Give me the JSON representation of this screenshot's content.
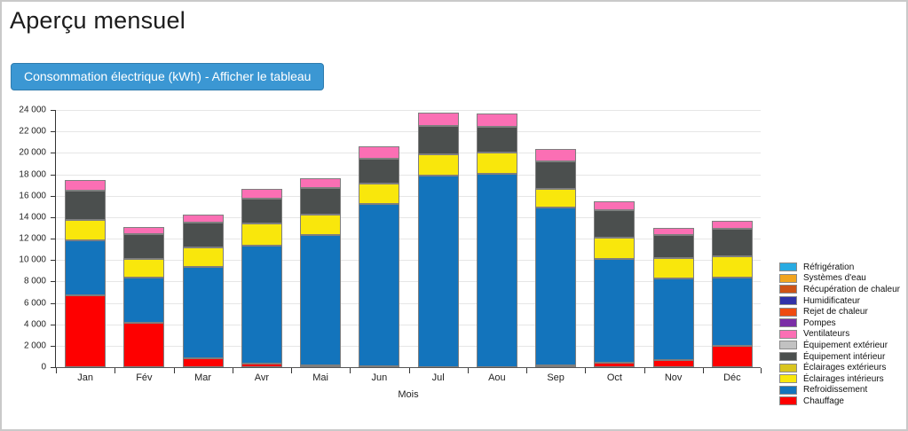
{
  "page": {
    "title": "Aperçu mensuel"
  },
  "toolbar": {
    "table_button_label": "Consommation électrique (kWh) - Afficher le tableau",
    "button_color": "#3b97d3"
  },
  "chart_data": {
    "type": "bar",
    "stacked": true,
    "xlabel": "Mois",
    "ylabel": "Consommation électrique (kWh)",
    "ylim": [
      0,
      24000
    ],
    "ytick_step": 2000,
    "grid": "horizontal",
    "legend_position": "right",
    "categories": [
      "Jan",
      "Fév",
      "Mar",
      "Avr",
      "Mai",
      "Jun",
      "Jul",
      "Aou",
      "Sep",
      "Oct",
      "Nov",
      "Déc"
    ],
    "series": [
      {
        "name": "Réfrigération",
        "color": "#29abe2",
        "values": [
          0,
          0,
          0,
          0,
          0,
          0,
          0,
          0,
          0,
          0,
          0,
          0
        ]
      },
      {
        "name": "Systèmes d'eau",
        "color": "#f2a41e",
        "values": [
          0,
          0,
          0,
          0,
          0,
          0,
          0,
          0,
          0,
          0,
          0,
          0
        ]
      },
      {
        "name": "Récupération de chaleur",
        "color": "#ce5315",
        "values": [
          0,
          0,
          0,
          0,
          0,
          0,
          0,
          0,
          0,
          0,
          0,
          0
        ]
      },
      {
        "name": "Humidificateur",
        "color": "#3032a8",
        "values": [
          0,
          0,
          0,
          0,
          0,
          0,
          0,
          0,
          0,
          0,
          0,
          0
        ]
      },
      {
        "name": "Rejet de chaleur",
        "color": "#ef4b0f",
        "values": [
          0,
          0,
          0,
          0,
          0,
          0,
          0,
          0,
          0,
          0,
          0,
          0
        ]
      },
      {
        "name": "Pompes",
        "color": "#7a2ea6",
        "values": [
          0,
          0,
          0,
          0,
          0,
          0,
          0,
          0,
          0,
          0,
          0,
          0
        ]
      },
      {
        "name": "Ventilateurs",
        "color": "#fb6fb4",
        "values": [
          1000,
          700,
          800,
          900,
          900,
          1150,
          1250,
          1300,
          1200,
          850,
          650,
          700
        ]
      },
      {
        "name": "Équipement extérieur",
        "color": "#c2c2c2",
        "values": [
          0,
          0,
          0,
          0,
          0,
          0,
          0,
          0,
          0,
          0,
          0,
          0
        ]
      },
      {
        "name": "Équipement intérieur",
        "color": "#4b4f4e",
        "values": [
          2750,
          2300,
          2250,
          2350,
          2450,
          2350,
          2600,
          2350,
          2550,
          2600,
          2200,
          2600
        ]
      },
      {
        "name": "Éclairages extérieurs",
        "color": "#d9c51f",
        "values": [
          0,
          0,
          0,
          0,
          0,
          0,
          0,
          0,
          0,
          0,
          0,
          0
        ]
      },
      {
        "name": "Éclairages intérieurs",
        "color": "#f9e70c",
        "values": [
          1900,
          1700,
          1850,
          2050,
          1950,
          1900,
          2000,
          2000,
          1750,
          1950,
          1850,
          1950
        ]
      },
      {
        "name": "Refroidissement",
        "color": "#1374bc",
        "values": [
          5150,
          4300,
          8550,
          11000,
          12150,
          15100,
          17900,
          18050,
          14750,
          9700,
          7650,
          6450
        ]
      },
      {
        "name": "Chauffage",
        "color": "#fe0000",
        "values": [
          6700,
          4100,
          800,
          350,
          150,
          100,
          0,
          0,
          150,
          400,
          650,
          1950
        ]
      }
    ]
  }
}
